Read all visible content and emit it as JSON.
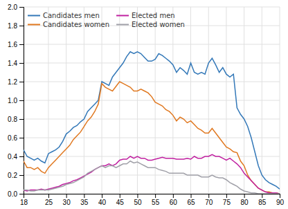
{
  "chart_data": {
    "type": "line",
    "x": [
      18,
      19,
      20,
      21,
      22,
      23,
      24,
      25,
      26,
      27,
      28,
      29,
      30,
      31,
      32,
      33,
      34,
      35,
      36,
      37,
      38,
      39,
      40,
      41,
      42,
      43,
      44,
      45,
      46,
      47,
      48,
      49,
      50,
      51,
      52,
      53,
      54,
      55,
      56,
      57,
      58,
      59,
      60,
      61,
      62,
      63,
      64,
      65,
      66,
      67,
      68,
      69,
      70,
      71,
      72,
      73,
      74,
      75,
      76,
      77,
      78,
      79,
      80,
      81,
      82,
      83,
      84,
      85,
      86,
      87,
      88,
      89,
      90
    ],
    "series": [
      {
        "name": "Candidates men",
        "color": "#3378b8",
        "values": [
          0.47,
          0.4,
          0.38,
          0.36,
          0.38,
          0.35,
          0.33,
          0.43,
          0.45,
          0.47,
          0.5,
          0.56,
          0.64,
          0.67,
          0.71,
          0.73,
          0.77,
          0.8,
          0.88,
          0.92,
          0.96,
          1.0,
          1.2,
          1.18,
          1.16,
          1.25,
          1.3,
          1.35,
          1.4,
          1.47,
          1.52,
          1.5,
          1.52,
          1.5,
          1.46,
          1.42,
          1.42,
          1.44,
          1.5,
          1.48,
          1.45,
          1.42,
          1.38,
          1.3,
          1.35,
          1.32,
          1.28,
          1.4,
          1.3,
          1.28,
          1.3,
          1.28,
          1.4,
          1.45,
          1.38,
          1.3,
          1.35,
          1.28,
          1.25,
          1.28,
          0.92,
          0.85,
          0.8,
          0.72,
          0.6,
          0.45,
          0.3,
          0.2,
          0.15,
          0.12,
          0.1,
          0.08,
          0.05
        ]
      },
      {
        "name": "Candidates women",
        "color": "#e07820",
        "values": [
          0.35,
          0.28,
          0.28,
          0.26,
          0.28,
          0.24,
          0.22,
          0.28,
          0.32,
          0.36,
          0.4,
          0.44,
          0.48,
          0.52,
          0.58,
          0.62,
          0.66,
          0.72,
          0.78,
          0.82,
          0.88,
          0.96,
          1.18,
          1.14,
          1.12,
          1.1,
          1.15,
          1.2,
          1.18,
          1.16,
          1.14,
          1.1,
          1.1,
          1.12,
          1.1,
          1.08,
          1.04,
          0.98,
          0.96,
          0.94,
          0.9,
          0.88,
          0.84,
          0.78,
          0.82,
          0.8,
          0.76,
          0.78,
          0.74,
          0.7,
          0.68,
          0.65,
          0.65,
          0.7,
          0.65,
          0.6,
          0.55,
          0.5,
          0.48,
          0.45,
          0.44,
          0.35,
          0.3,
          0.2,
          0.14,
          0.1,
          0.06,
          0.04,
          0.02,
          0.02,
          0.01,
          0.01,
          0.0
        ]
      },
      {
        "name": "Elected men",
        "color": "#c020a0",
        "values": [
          0.04,
          0.03,
          0.04,
          0.04,
          0.04,
          0.05,
          0.04,
          0.05,
          0.06,
          0.07,
          0.08,
          0.1,
          0.11,
          0.12,
          0.14,
          0.15,
          0.17,
          0.19,
          0.21,
          0.23,
          0.26,
          0.28,
          0.3,
          0.3,
          0.32,
          0.3,
          0.32,
          0.36,
          0.37,
          0.37,
          0.4,
          0.38,
          0.4,
          0.38,
          0.38,
          0.36,
          0.36,
          0.37,
          0.38,
          0.39,
          0.38,
          0.38,
          0.38,
          0.37,
          0.37,
          0.37,
          0.38,
          0.37,
          0.4,
          0.38,
          0.38,
          0.4,
          0.4,
          0.42,
          0.4,
          0.4,
          0.38,
          0.36,
          0.38,
          0.35,
          0.32,
          0.28,
          0.22,
          0.18,
          0.14,
          0.1,
          0.06,
          0.04,
          0.02,
          0.01,
          0.01,
          0.01,
          0.0
        ]
      },
      {
        "name": "Elected women",
        "color": "#a0a0a8",
        "values": [
          0.04,
          0.04,
          0.03,
          0.03,
          0.04,
          0.04,
          0.04,
          0.04,
          0.05,
          0.06,
          0.07,
          0.08,
          0.1,
          0.11,
          0.12,
          0.14,
          0.16,
          0.18,
          0.22,
          0.24,
          0.26,
          0.28,
          0.3,
          0.28,
          0.3,
          0.3,
          0.28,
          0.3,
          0.32,
          0.32,
          0.35,
          0.33,
          0.34,
          0.32,
          0.3,
          0.28,
          0.28,
          0.28,
          0.26,
          0.25,
          0.24,
          0.22,
          0.22,
          0.22,
          0.22,
          0.22,
          0.2,
          0.2,
          0.2,
          0.2,
          0.18,
          0.18,
          0.18,
          0.2,
          0.18,
          0.17,
          0.17,
          0.15,
          0.12,
          0.1,
          0.08,
          0.05,
          0.03,
          0.02,
          0.01,
          0.01,
          0.0,
          0.0,
          0.0,
          0.0,
          0.0,
          0.0,
          0.0
        ]
      }
    ],
    "xlim": [
      18,
      90
    ],
    "ylim": [
      0,
      2.0
    ],
    "xticks": [
      18,
      25,
      30,
      35,
      40,
      45,
      50,
      55,
      60,
      65,
      70,
      75,
      80,
      85,
      90
    ],
    "yticks": [
      {
        "value": 0,
        "label": "0.0"
      },
      0.2,
      0.4,
      0.6,
      0.8,
      {
        "value": 1,
        "label": "1.0"
      },
      1.2,
      1.4,
      1.6,
      1.8,
      {
        "value": 2,
        "label": "2.0"
      }
    ],
    "grid": true,
    "legend": "upper left"
  }
}
